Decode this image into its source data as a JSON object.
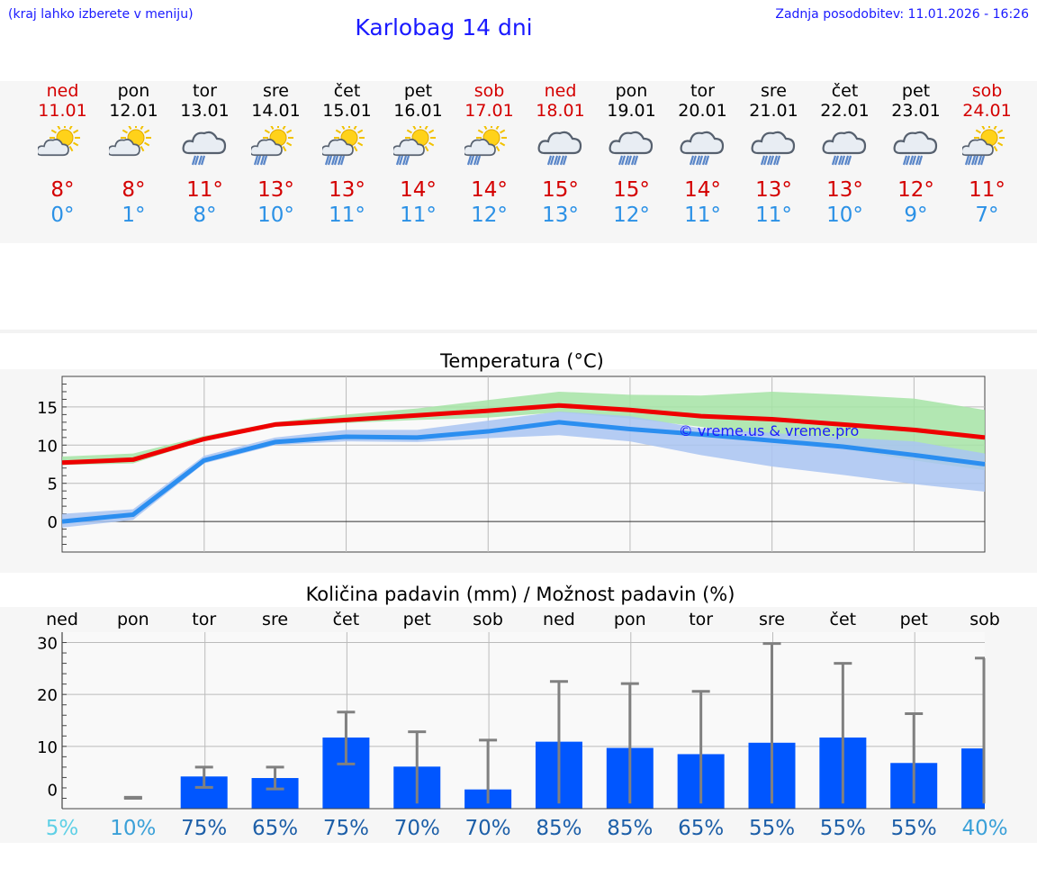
{
  "header": {
    "note": "(kraj lahko izberete v meniju)",
    "title": "Karlobag 14 dni",
    "updated": "Zadnja posodobitev: 11.01.2026 - 16:26"
  },
  "colors": {
    "max_temp": "#ee0000",
    "min_temp": "#2b8ef0",
    "max_band": "#a6e4a6",
    "min_band": "#a9c4f2",
    "rain_bar": "#0056ff",
    "error_bar": "#808080"
  },
  "forecast": [
    {
      "day": "ned",
      "date": "11.01",
      "max": "8°",
      "min": "0°",
      "weekend": true,
      "icon": "sun-cloud-icon"
    },
    {
      "day": "pon",
      "date": "12.01",
      "max": "8°",
      "min": "1°",
      "weekend": false,
      "icon": "sun-cloud-icon"
    },
    {
      "day": "tor",
      "date": "13.01",
      "max": "11°",
      "min": "8°",
      "weekend": false,
      "icon": "cloud-rain-icon"
    },
    {
      "day": "sre",
      "date": "14.01",
      "max": "13°",
      "min": "10°",
      "weekend": false,
      "icon": "sun-cloud-rain-icon"
    },
    {
      "day": "čet",
      "date": "15.01",
      "max": "13°",
      "min": "11°",
      "weekend": false,
      "icon": "sun-cloud-heavy-rain-icon"
    },
    {
      "day": "pet",
      "date": "16.01",
      "max": "14°",
      "min": "11°",
      "weekend": false,
      "icon": "sun-cloud-rain-icon"
    },
    {
      "day": "sob",
      "date": "17.01",
      "max": "14°",
      "min": "12°",
      "weekend": true,
      "icon": "sun-cloud-rain-icon"
    },
    {
      "day": "ned",
      "date": "18.01",
      "max": "15°",
      "min": "13°",
      "weekend": true,
      "icon": "cloud-heavy-rain-icon"
    },
    {
      "day": "pon",
      "date": "19.01",
      "max": "15°",
      "min": "12°",
      "weekend": false,
      "icon": "cloud-heavy-rain-icon"
    },
    {
      "day": "tor",
      "date": "20.01",
      "max": "14°",
      "min": "11°",
      "weekend": false,
      "icon": "cloud-heavy-rain-icon"
    },
    {
      "day": "sre",
      "date": "21.01",
      "max": "13°",
      "min": "11°",
      "weekend": false,
      "icon": "cloud-heavy-rain-icon"
    },
    {
      "day": "čet",
      "date": "22.01",
      "max": "13°",
      "min": "10°",
      "weekend": false,
      "icon": "cloud-heavy-rain-icon"
    },
    {
      "day": "pet",
      "date": "23.01",
      "max": "12°",
      "min": "9°",
      "weekend": false,
      "icon": "cloud-heavy-rain-icon"
    },
    {
      "day": "sob",
      "date": "24.01",
      "max": "11°",
      "min": "7°",
      "weekend": true,
      "icon": "sun-cloud-heavy-rain-icon"
    }
  ],
  "chart_data": [
    {
      "type": "line",
      "title": "Temperatura (°C)",
      "watermark": "© vreme.us & vreme.pro",
      "x_days": 14,
      "ylim": [
        -4,
        19
      ],
      "yticks": [
        0,
        5,
        10,
        15
      ],
      "series": [
        {
          "name": "max",
          "color": "#ee0000",
          "x": [
            0,
            1,
            2,
            3,
            4,
            5,
            6,
            7,
            8,
            9,
            10,
            11,
            12,
            13
          ],
          "values": [
            7.7,
            8.1,
            10.8,
            12.7,
            13.3,
            13.9,
            14.5,
            15.2,
            14.6,
            13.8,
            13.4,
            12.7,
            12.0,
            11.0
          ],
          "band_low": [
            7.4,
            7.6,
            10.6,
            12.4,
            12.9,
            13.3,
            13.6,
            14.3,
            13.5,
            12.4,
            11.1,
            9.5,
            8.0,
            6.7
          ],
          "band_high": [
            8.5,
            8.9,
            11.2,
            13.0,
            14.0,
            14.8,
            15.9,
            17.0,
            16.6,
            16.5,
            17.0,
            16.6,
            16.1,
            14.6
          ]
        },
        {
          "name": "min",
          "color": "#2b8ef0",
          "x": [
            0,
            1,
            2,
            3,
            4,
            5,
            6,
            7,
            8,
            9,
            10,
            11,
            12,
            13
          ],
          "values": [
            0.0,
            0.9,
            8.0,
            10.4,
            11.1,
            11.0,
            11.8,
            13.0,
            12.1,
            11.4,
            10.6,
            9.8,
            8.7,
            7.5
          ],
          "band_low": [
            -0.8,
            0.2,
            7.6,
            10.0,
            10.5,
            10.4,
            10.9,
            11.3,
            10.5,
            8.7,
            7.2,
            6.1,
            4.9,
            3.9
          ],
          "band_high": [
            1.0,
            1.6,
            8.6,
            11.0,
            12.0,
            12.0,
            13.2,
            14.4,
            13.8,
            12.2,
            11.6,
            11.0,
            10.5,
            8.9
          ]
        }
      ]
    },
    {
      "type": "bar",
      "title": "Količina padavin (mm) / Možnost padavin (%)",
      "categories": [
        "ned",
        "pon",
        "tor",
        "sre",
        "čet",
        "pet",
        "sob",
        "ned",
        "pon",
        "tor",
        "sre",
        "čet",
        "pet",
        "sob"
      ],
      "ylim": [
        -2,
        32
      ],
      "yticks": [
        0,
        10,
        20,
        30
      ],
      "values": [
        0,
        0,
        4.2,
        3.9,
        11.7,
        6.1,
        1.7,
        10.9,
        9.7,
        8.5,
        10.7,
        11.7,
        6.8,
        9.6
      ],
      "error_low": [
        null,
        0,
        2.1,
        1.8,
        6.6,
        null,
        null,
        null,
        null,
        null,
        null,
        null,
        null,
        null
      ],
      "error_high": [
        null,
        0.2,
        6.0,
        6.0,
        16.6,
        12.8,
        11.2,
        22.5,
        22.1,
        20.6,
        29.8,
        26.0,
        16.3,
        27.0
      ],
      "probability": [
        "5%",
        "10%",
        "75%",
        "65%",
        "75%",
        "70%",
        "70%",
        "85%",
        "85%",
        "65%",
        "55%",
        "55%",
        "55%",
        "40%"
      ],
      "probability_colors": [
        "#5fd0e6",
        "#3aa0d8",
        "#1d5fa8",
        "#1d5fa8",
        "#1d5fa8",
        "#1d5fa8",
        "#1d5fa8",
        "#1d5fa8",
        "#1d5fa8",
        "#1d5fa8",
        "#1d5fa8",
        "#1d5fa8",
        "#1d5fa8",
        "#3aa0d8"
      ]
    }
  ]
}
